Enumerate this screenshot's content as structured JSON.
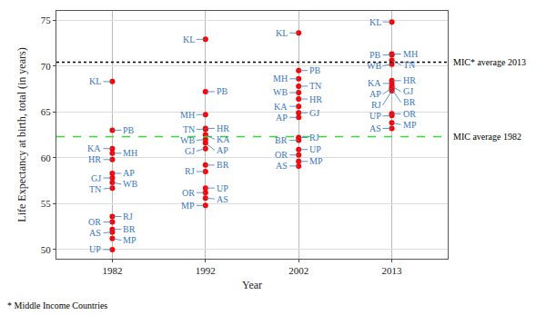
{
  "chart_data": {
    "type": "scatter",
    "xlabel": "Year",
    "ylabel": "Life Expectancy at birth, total (in years)",
    "categories": [
      "1982",
      "1992",
      "2002",
      "2013"
    ],
    "color": "red",
    "marker": "circle",
    "grid": true,
    "ylim": [
      49,
      76
    ],
    "yticks": [
      50,
      55,
      60,
      65,
      70,
      75
    ],
    "series": [
      {
        "name": "KL",
        "values": [
          68.3,
          72.9,
          73.6,
          74.8
        ]
      },
      {
        "name": "PB",
        "values": [
          63.0,
          67.2,
          69.5,
          71.2
        ]
      },
      {
        "name": "KA",
        "values": [
          61.0,
          62.5,
          65.6,
          68.1
        ]
      },
      {
        "name": "MH",
        "values": [
          60.5,
          64.7,
          68.6,
          71.3
        ]
      },
      {
        "name": "HR",
        "values": [
          59.8,
          63.2,
          66.4,
          68.4
        ]
      },
      {
        "name": "AP",
        "values": [
          58.3,
          61.6,
          64.4,
          67.6
        ]
      },
      {
        "name": "GJ",
        "values": [
          57.8,
          61.0,
          64.9,
          67.8
        ]
      },
      {
        "name": "WB",
        "values": [
          57.3,
          62.0,
          67.1,
          70.2
        ]
      },
      {
        "name": "TN",
        "values": [
          56.7,
          63.1,
          67.8,
          70.6
        ]
      },
      {
        "name": "RJ",
        "values": [
          53.6,
          58.5,
          62.2,
          67.3
        ]
      },
      {
        "name": "OR",
        "values": [
          53.0,
          56.2,
          60.3,
          64.8
        ]
      },
      {
        "name": "BR",
        "values": [
          52.2,
          59.2,
          61.9,
          67.5
        ]
      },
      {
        "name": "AS",
        "values": [
          51.9,
          55.6,
          59.1,
          63.2
        ]
      },
      {
        "name": "MP",
        "values": [
          51.2,
          54.8,
          59.6,
          63.8
        ]
      },
      {
        "name": "UP",
        "values": [
          50.0,
          56.7,
          60.9,
          64.6
        ]
      }
    ],
    "reference_lines": [
      {
        "value": 70.4,
        "label": "MIC* average 2013",
        "color": "black",
        "line_style": "dot"
      },
      {
        "value": 62.3,
        "label": "MIC average 1982",
        "color": "#33dd33",
        "line_style": "dash"
      }
    ],
    "footnote": "* Middle Income Countries"
  }
}
